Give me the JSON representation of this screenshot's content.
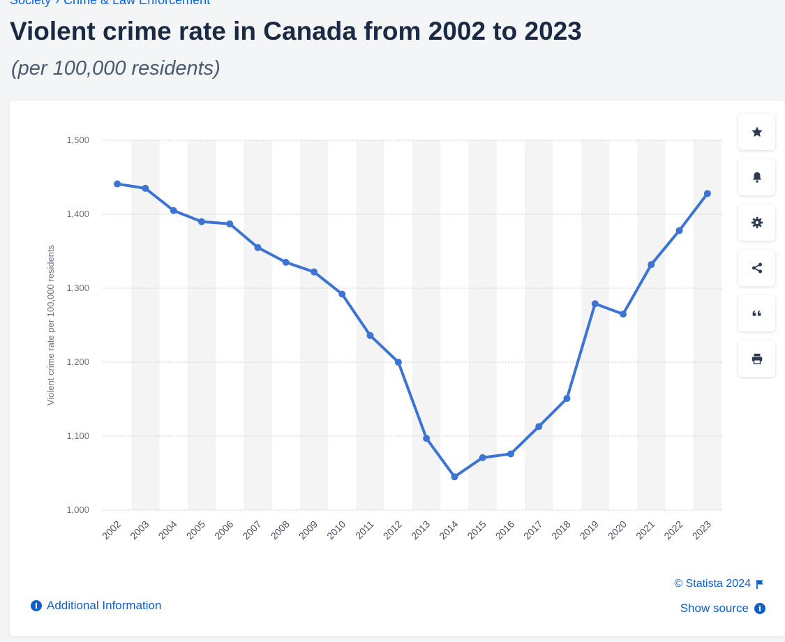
{
  "breadcrumb": {
    "parent": "Society",
    "current": "Crime & Law Enforcement"
  },
  "header": {
    "title": "Violent crime rate in Canada from 2002 to 2023",
    "subtitle": "(per 100,000 residents)"
  },
  "toolbar": {
    "buttons": [
      {
        "name": "bookmark",
        "icon": "star-icon"
      },
      {
        "name": "notification",
        "icon": "bell-icon"
      },
      {
        "name": "settings",
        "icon": "gear-icon"
      },
      {
        "name": "share",
        "icon": "share-icon"
      },
      {
        "name": "cite",
        "icon": "quote-icon"
      },
      {
        "name": "print",
        "icon": "printer-icon"
      }
    ]
  },
  "footer": {
    "additional_info": "Additional Information",
    "copyright": "© Statista 2024",
    "show_source": "Show source"
  },
  "colors": {
    "line": "#3d74d4",
    "accent": "#0f5fc4",
    "band": "#f4f4f5"
  },
  "chart_data": {
    "type": "line",
    "title": "",
    "xlabel": "",
    "ylabel": "Violent crime rate per 100,000 residents",
    "categories": [
      "2002",
      "2003",
      "2004",
      "2005",
      "2006",
      "2007",
      "2008",
      "2009",
      "2010",
      "2011",
      "2012",
      "2013",
      "2014",
      "2015",
      "2016",
      "2017",
      "2018",
      "2019",
      "2020",
      "2021",
      "2022",
      "2023"
    ],
    "series": [
      {
        "values": [
          1441,
          1435,
          1405,
          1390,
          1387,
          1355,
          1335,
          1322,
          1292,
          1236,
          1200,
          1097,
          1045,
          1071,
          1076,
          1113,
          1151,
          1279,
          1265,
          1332,
          1378,
          1428
        ]
      }
    ],
    "ylim": [
      1000,
      1500
    ],
    "yticks": [
      1000,
      1100,
      1200,
      1300,
      1400,
      1500
    ],
    "ytick_labels": [
      "1,000",
      "1,100",
      "1,200",
      "1,300",
      "1,400",
      "1,500"
    ],
    "grid": true,
    "legend": "none"
  }
}
